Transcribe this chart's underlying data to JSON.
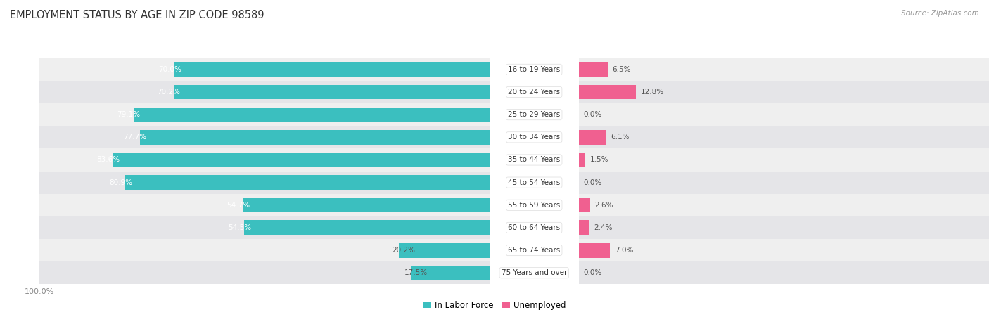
{
  "title": "EMPLOYMENT STATUS BY AGE IN ZIP CODE 98589",
  "source": "Source: ZipAtlas.com",
  "categories": [
    "16 to 19 Years",
    "20 to 24 Years",
    "25 to 29 Years",
    "30 to 34 Years",
    "35 to 44 Years",
    "45 to 54 Years",
    "55 to 59 Years",
    "60 to 64 Years",
    "65 to 74 Years",
    "75 Years and over"
  ],
  "labor_force": [
    70.0,
    70.2,
    79.1,
    77.7,
    83.6,
    80.9,
    54.7,
    54.5,
    20.2,
    17.5
  ],
  "unemployed": [
    6.5,
    12.8,
    0.0,
    6.1,
    1.5,
    0.0,
    2.6,
    2.4,
    7.0,
    0.0
  ],
  "labor_color": "#3BBFBF",
  "labor_color_light": "#7ED8D8",
  "unemployed_color": "#F06090",
  "unemployed_color_light": "#F5A8C0",
  "row_bg_even": "#EFEFEF",
  "row_bg_odd": "#E5E5E8",
  "title_color": "#333333",
  "source_color": "#999999",
  "label_in_color": "#FFFFFF",
  "label_out_color": "#555555",
  "center_label_color": "#333333",
  "axis_tick_color": "#888888",
  "legend_labels": [
    "In Labor Force",
    "Unemployed"
  ],
  "max_scale": 100.0
}
